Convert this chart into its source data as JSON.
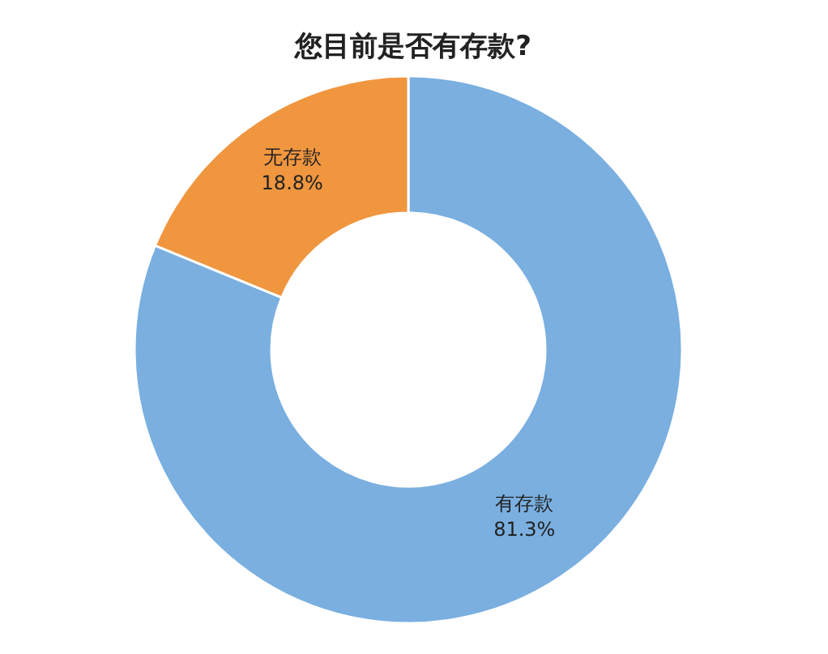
{
  "chart_data": {
    "type": "donut",
    "title": "您目前是否有存款?",
    "categories": [
      "有存款",
      "无存款"
    ],
    "values": [
      81.3,
      18.8
    ],
    "colors": [
      "#7aafe0",
      "#f0963f"
    ],
    "value_labels": [
      "81.3%",
      "18.8%"
    ]
  }
}
